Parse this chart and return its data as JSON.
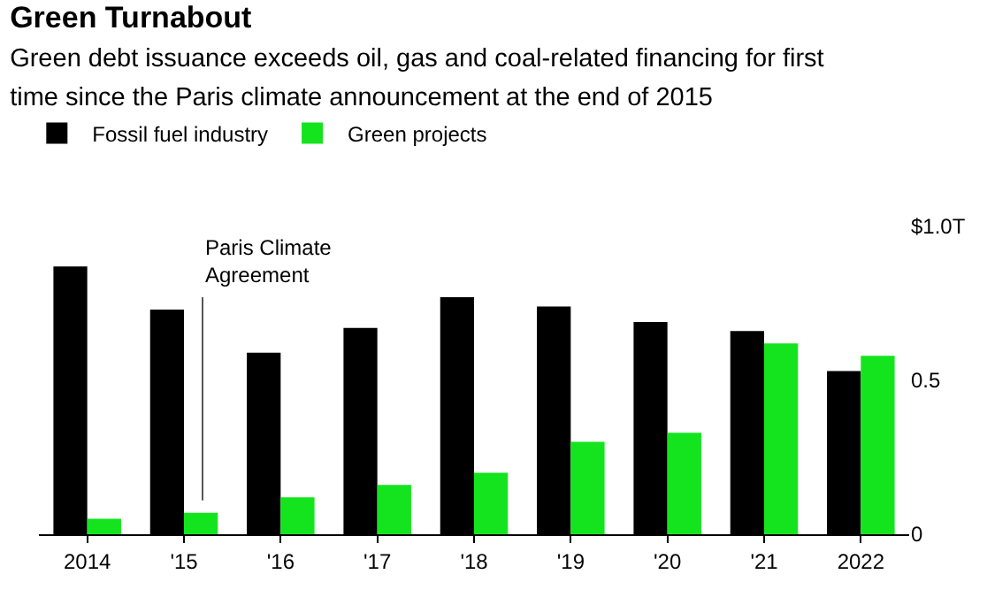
{
  "chart_data": {
    "type": "bar",
    "title": "Green Turnabout",
    "subtitle": "Green debt issuance exceeds oil, gas and coal-related financing for first\ntime since the Paris climate announcement at the end of 2015",
    "categories": [
      "2014",
      "'15",
      "'16",
      "'17",
      "'18",
      "'19",
      "'20",
      "'21",
      "2022"
    ],
    "series": [
      {
        "name": "Fossil fuel industry",
        "color": "#000000",
        "values": [
          0.87,
          0.73,
          0.59,
          0.67,
          0.77,
          0.74,
          0.69,
          0.66,
          0.53
        ]
      },
      {
        "name": "Green projects",
        "color": "#14e41e",
        "values": [
          0.05,
          0.07,
          0.12,
          0.16,
          0.2,
          0.3,
          0.33,
          0.62,
          0.58
        ]
      }
    ],
    "ylim": [
      0,
      1.0
    ],
    "yticks": [
      0,
      0.5,
      {
        "value": 1.0,
        "label": "$1.0T"
      }
    ],
    "legend": "top left",
    "annotations": [
      "Paris Climate\nAgreement"
    ]
  }
}
